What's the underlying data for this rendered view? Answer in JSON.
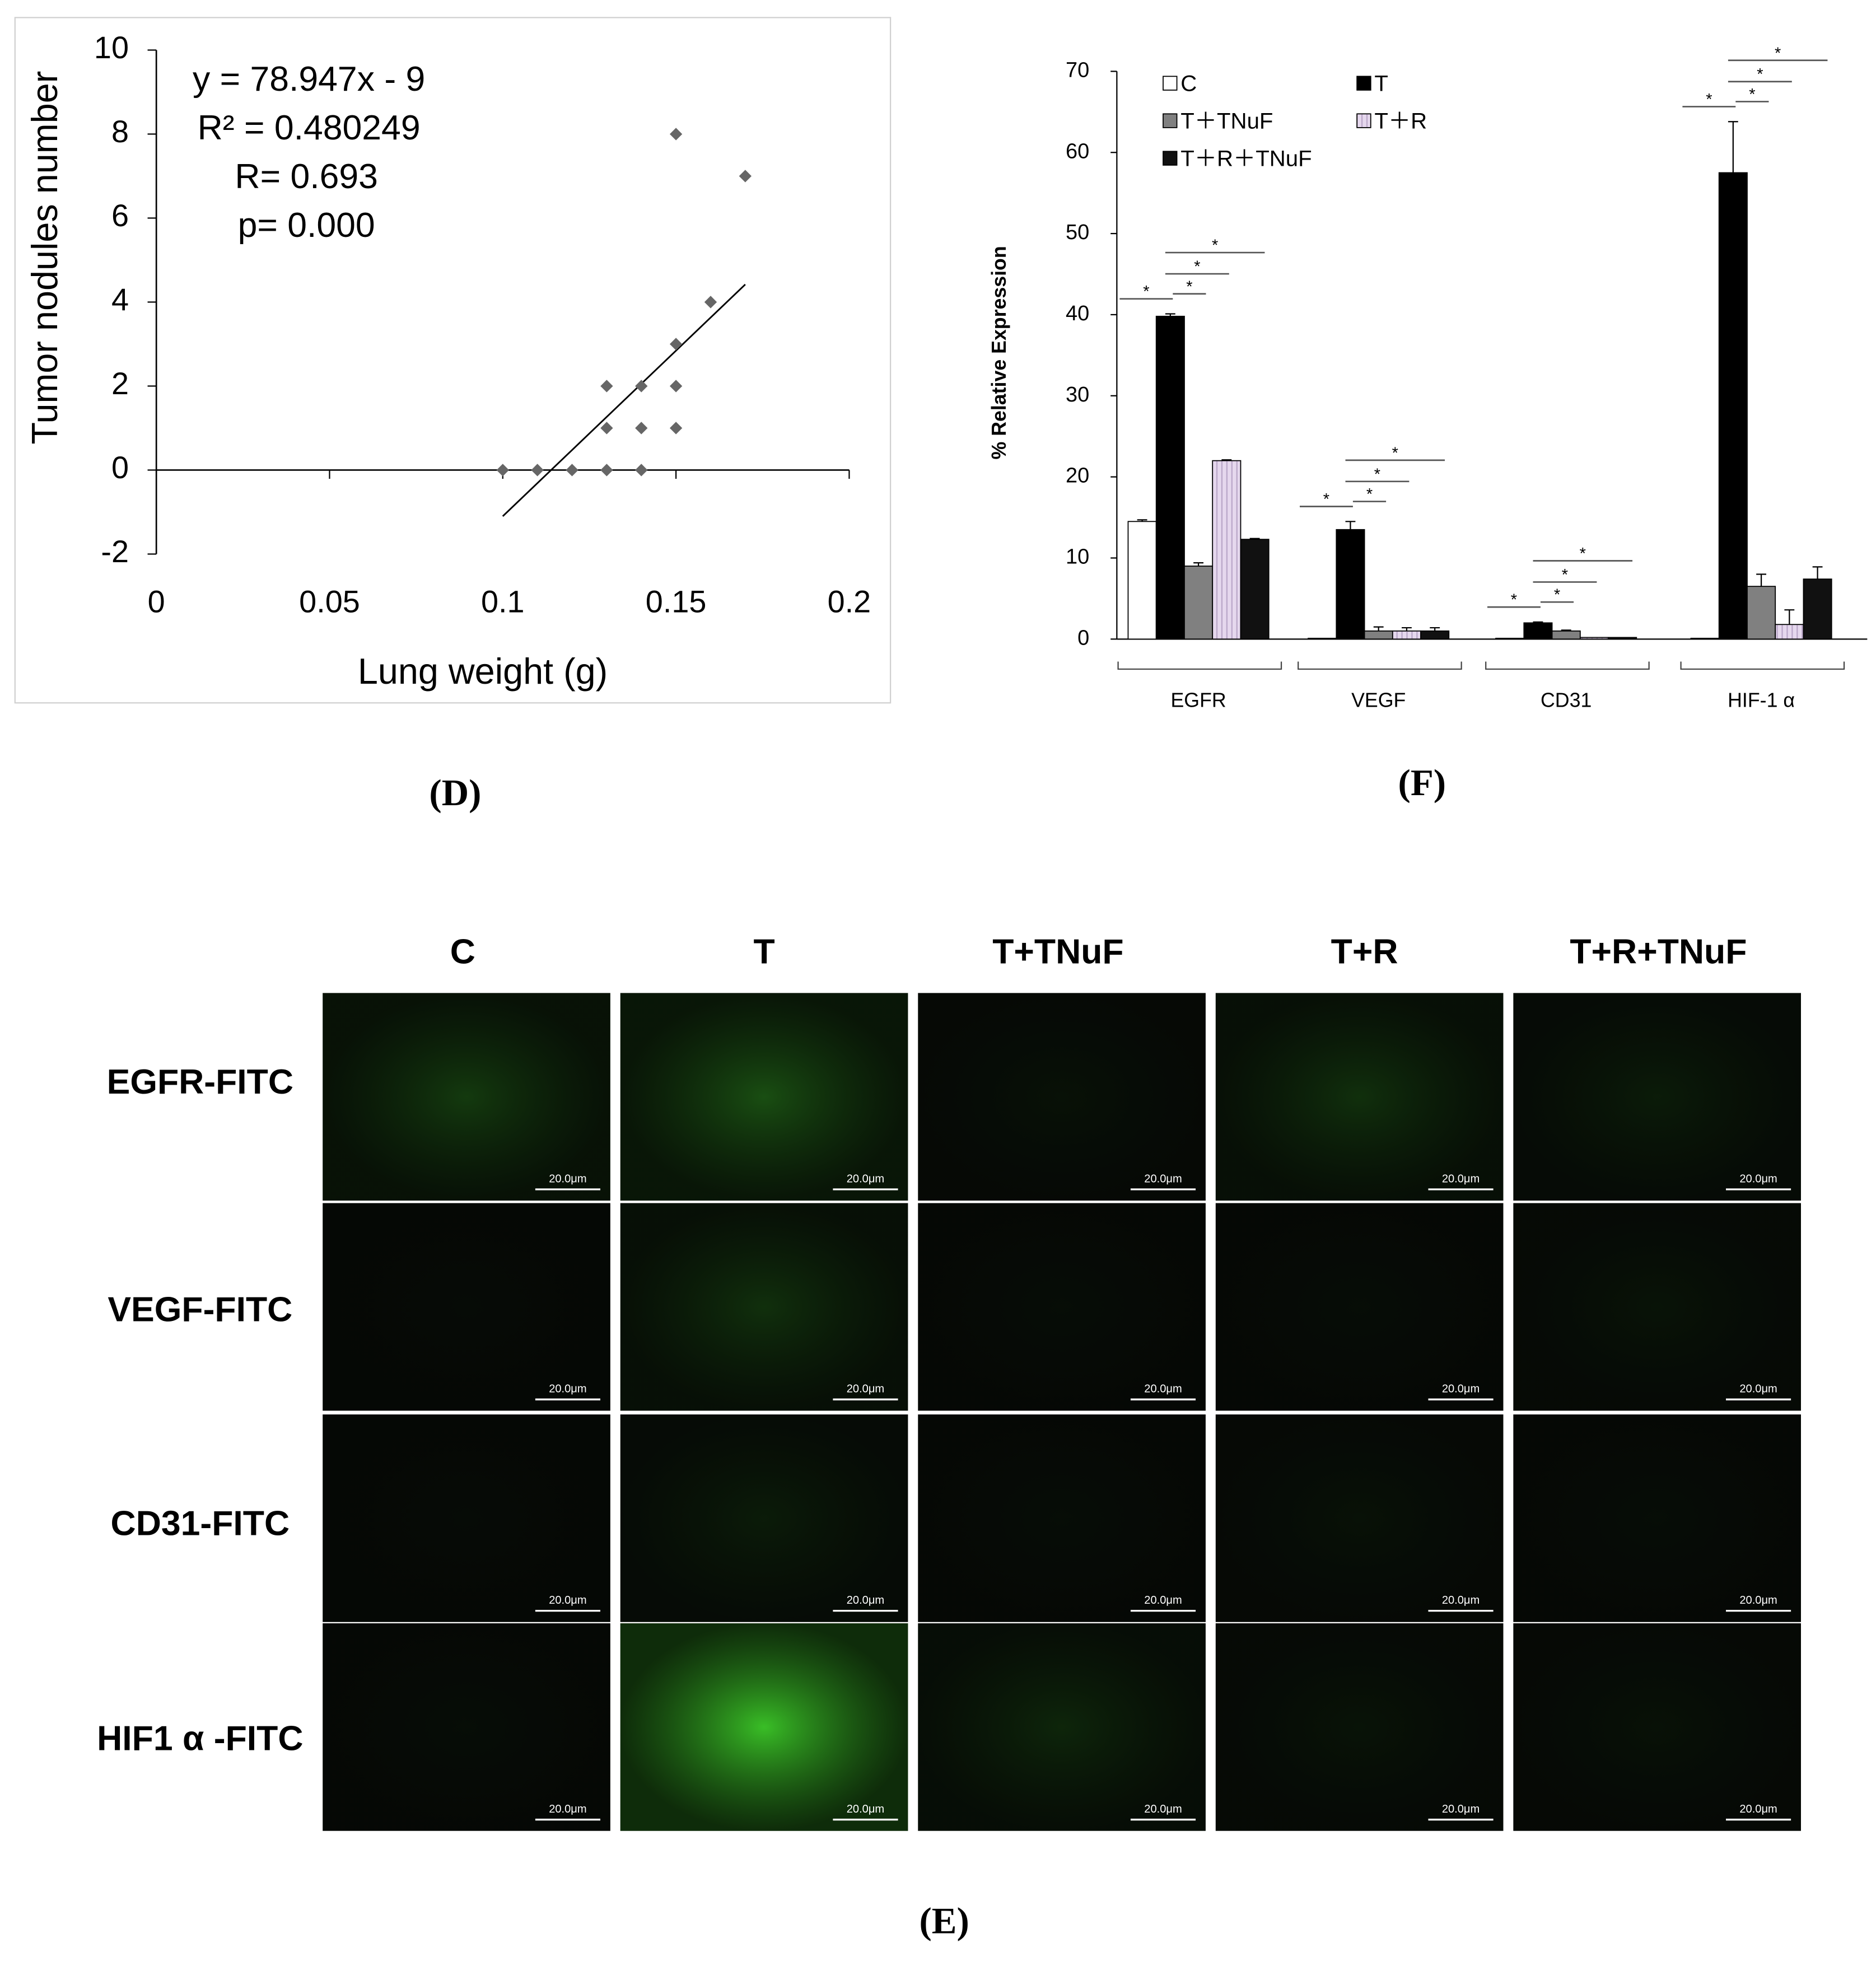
{
  "chart_data": [
    {
      "type": "scatter",
      "panel_label": "(D)",
      "x_label": "Lung weight (g)",
      "y_label": "Tumor nodules number",
      "annotations": [
        "y = 78.947x - 9",
        "R² = 0.480249",
        "R= 0.693",
        "p= 0.000"
      ],
      "x": [
        0.1,
        0.11,
        0.12,
        0.13,
        0.13,
        0.13,
        0.14,
        0.14,
        0.14,
        0.15,
        0.15,
        0.15,
        0.15,
        0.16,
        0.17
      ],
      "values": [
        0,
        0,
        0,
        0,
        1,
        2,
        0,
        1,
        2,
        1,
        2,
        3,
        8,
        4,
        7
      ],
      "color": "#666666",
      "trendline": {
        "x": [
          0.1,
          0.17
        ],
        "values": [
          -1.1,
          4.42
        ]
      },
      "xlim": [
        0,
        0.2
      ],
      "xticks": [
        0,
        0.05,
        0.1,
        0.15,
        0.2
      ],
      "ylim": [
        -2,
        10
      ],
      "yticks": [
        -2,
        0,
        2,
        4,
        6,
        8,
        10
      ]
    },
    {
      "type": "bar",
      "panel_label": "(F)",
      "y_label": "% Relative Expression",
      "categories": [
        "EGFR",
        "VEGF",
        "CD31",
        "HIF-1 α"
      ],
      "series": [
        {
          "name": "C",
          "color": "#ffffff",
          "values": [
            14.5,
            0.1,
            0.1,
            0.1
          ],
          "errors": [
            0.2,
            0,
            0,
            0
          ]
        },
        {
          "name": "T",
          "color": "#000000",
          "values": [
            39.8,
            13.5,
            2,
            57.5
          ],
          "errors": [
            0.3,
            1,
            0.1,
            6.3
          ]
        },
        {
          "name": "T＋TNuF",
          "color": "#808080",
          "values": [
            9,
            1,
            1,
            6.5
          ],
          "errors": [
            0.4,
            0.5,
            0.1,
            1.5
          ]
        },
        {
          "name": "T＋R",
          "color": "#e6d8ee",
          "values": [
            22,
            1,
            0.2,
            1.8
          ],
          "errors": [
            0.1,
            0.4,
            0,
            1.8
          ]
        },
        {
          "name": "T＋R＋TNuF",
          "color": "#111111",
          "values": [
            12.3,
            1,
            0.2,
            7.4
          ],
          "errors": [
            0.1,
            0.4,
            0,
            1.5
          ]
        }
      ],
      "significance": [
        [
          "*",
          "*",
          "*",
          "*"
        ],
        [
          "*",
          "*",
          "*",
          "*"
        ],
        [
          "*",
          "*",
          "*",
          "*"
        ],
        [
          "*",
          "*",
          "*",
          "*"
        ]
      ],
      "ylim": [
        0,
        70
      ],
      "yticks": [
        0,
        10,
        20,
        30,
        40,
        50,
        60,
        70
      ]
    }
  ],
  "figure_e": {
    "panel_label": "(E)",
    "columns": [
      "C",
      "T",
      "T+TNuF",
      "T+R",
      "T+R+TNuF"
    ],
    "rows": [
      "EGFR-FITC",
      "VEGF-FITC",
      "CD31-FITC",
      "HIF1 α -FITC"
    ],
    "scale_bar": "20.0μm"
  }
}
